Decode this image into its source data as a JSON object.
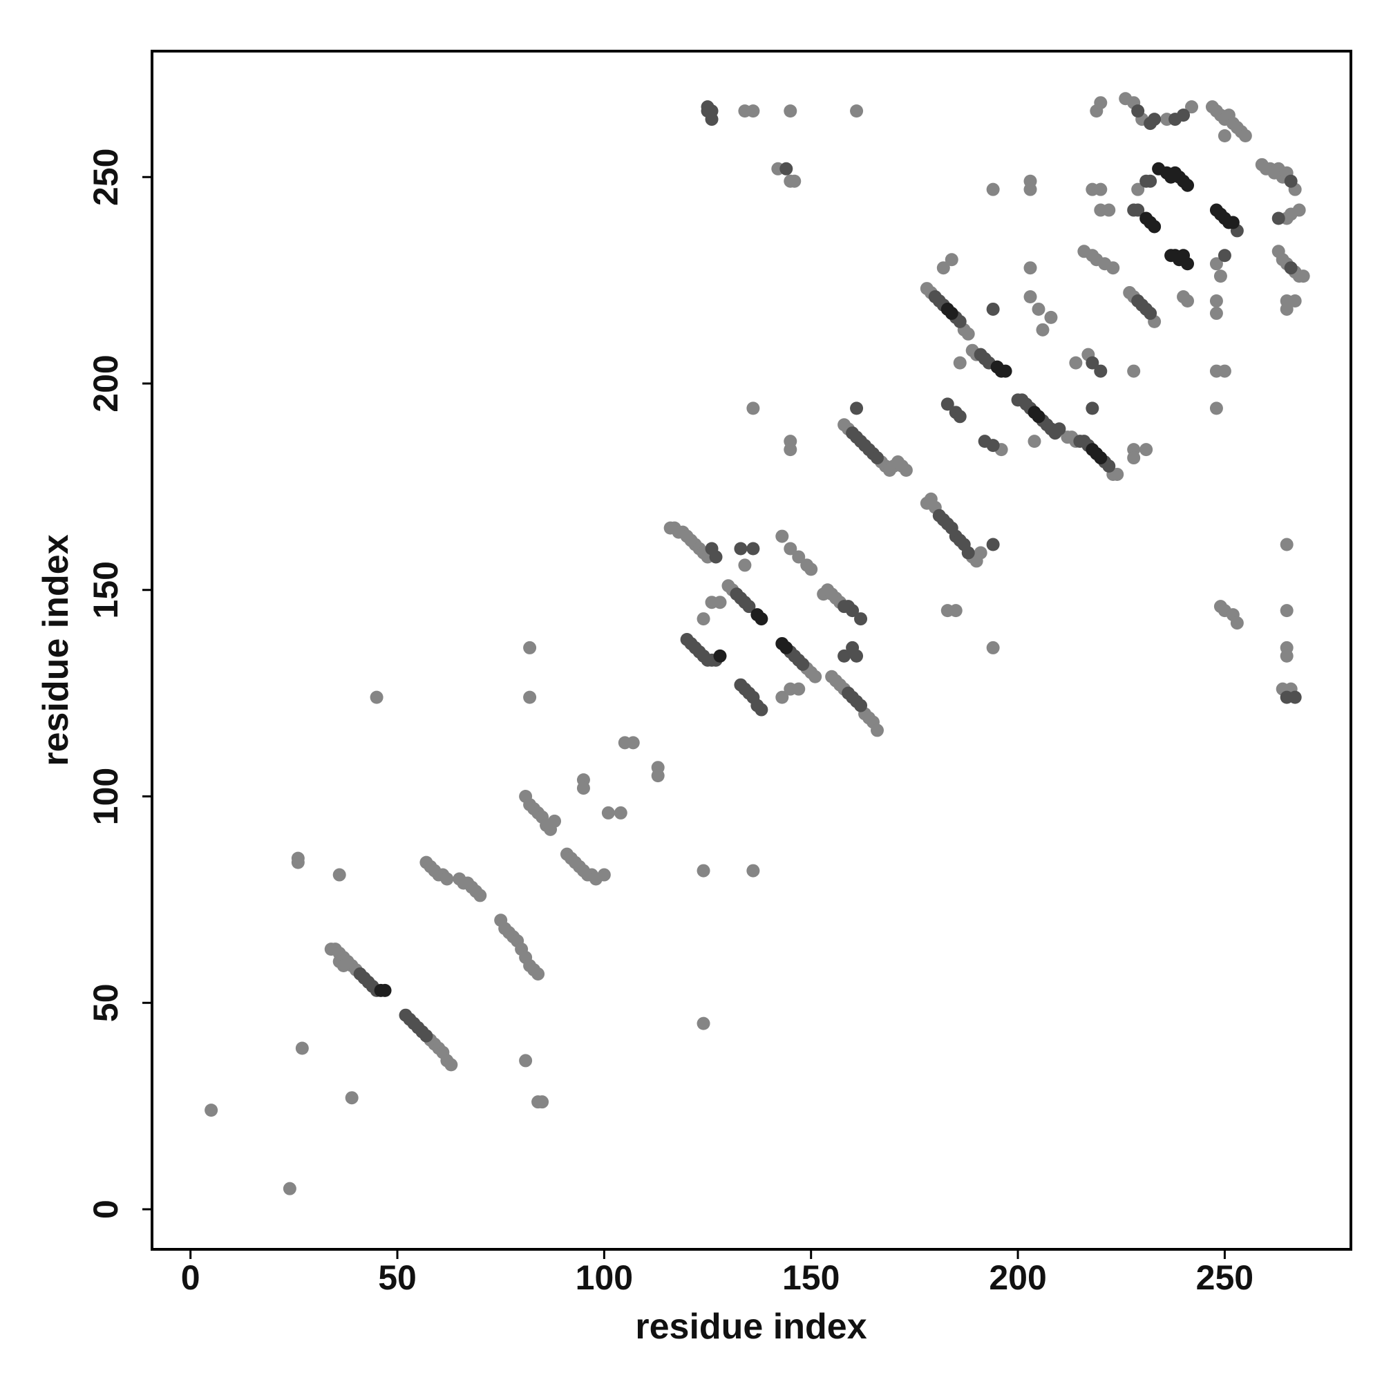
{
  "chart_data": {
    "type": "scatter",
    "xlabel": "residue index",
    "ylabel": "residue index",
    "xlim": [
      -9.3,
      280.5
    ],
    "ylim": [
      -9.7,
      280.5
    ],
    "xticks": [
      0,
      50,
      100,
      150,
      200,
      250
    ],
    "yticks": [
      0,
      50,
      100,
      150,
      200,
      250
    ],
    "series": [
      {
        "color": "#858585",
        "x": [
          5,
          24,
          27,
          39,
          36,
          26,
          26,
          45,
          34,
          35,
          36,
          37,
          38,
          39,
          40,
          36,
          37,
          58,
          59,
          60,
          61,
          62,
          63,
          57,
          58,
          59,
          60,
          61,
          62,
          65,
          66,
          67,
          68,
          69,
          70,
          75,
          76,
          77,
          78,
          79,
          80,
          81,
          82,
          83,
          84,
          81,
          84,
          85,
          82,
          82,
          81,
          82,
          83,
          84,
          85,
          86,
          87,
          88,
          91,
          92,
          93,
          94,
          95,
          96,
          97,
          98,
          100,
          95,
          95,
          101,
          104,
          105,
          107,
          113,
          113,
          124,
          124,
          136,
          136,
          116,
          117,
          118,
          119,
          120,
          121,
          122,
          123,
          124,
          125,
          134,
          124,
          126,
          128,
          130,
          131,
          143,
          145,
          147,
          143,
          145,
          147,
          149,
          150,
          145,
          145,
          145,
          134,
          136,
          161,
          142,
          145,
          146,
          149,
          150,
          151,
          153,
          154,
          155,
          156,
          157,
          155,
          156,
          157,
          158,
          163,
          164,
          165,
          166,
          158,
          159,
          167,
          168,
          169,
          170,
          171,
          172,
          173,
          178,
          179,
          180,
          189,
          190,
          191,
          183,
          185,
          194,
          178,
          179,
          187,
          188,
          182,
          184,
          186,
          189,
          190,
          194,
          196,
          203,
          203,
          205,
          208,
          206,
          203,
          203,
          204,
          212,
          213,
          214,
          223,
          224,
          214,
          217,
          216,
          218,
          219,
          221,
          223,
          218,
          220,
          219,
          220,
          220,
          222,
          227,
          228,
          233,
          228,
          228,
          231,
          228,
          229,
          226,
          228,
          230,
          236,
          242,
          240,
          241,
          248,
          249,
          248,
          248,
          248,
          250,
          248,
          249,
          250,
          252,
          253,
          247,
          248,
          249,
          250,
          251,
          252,
          253,
          254,
          255,
          250,
          259,
          260,
          261,
          262,
          263,
          264,
          265,
          267,
          268,
          265,
          266,
          263,
          264,
          265,
          267,
          268,
          269,
          265,
          267,
          265,
          265,
          265,
          265,
          265,
          264,
          266
        ],
        "y": [
          24,
          5,
          39,
          27,
          81,
          84,
          85,
          124,
          63,
          63,
          62,
          61,
          60,
          59,
          58,
          60,
          59,
          41,
          40,
          39,
          38,
          36,
          35,
          84,
          83,
          82,
          81,
          81,
          80,
          80,
          79,
          79,
          78,
          77,
          76,
          70,
          68,
          67,
          66,
          65,
          63,
          61,
          59,
          58,
          57,
          36,
          26,
          26,
          136,
          124,
          100,
          98,
          97,
          96,
          95,
          93,
          92,
          94,
          86,
          85,
          84,
          83,
          82,
          81,
          81,
          80,
          81,
          104,
          102,
          96,
          96,
          113,
          113,
          107,
          105,
          82,
          45,
          82,
          194,
          165,
          165,
          164,
          164,
          163,
          162,
          161,
          160,
          159,
          158,
          156,
          143,
          147,
          147,
          151,
          150,
          124,
          126,
          126,
          163,
          160,
          158,
          156,
          155,
          186,
          184,
          266,
          266,
          266,
          266,
          252,
          249,
          249,
          131,
          130,
          129,
          149,
          150,
          149,
          148,
          147,
          129,
          128,
          127,
          126,
          120,
          119,
          118,
          116,
          190,
          189,
          181,
          180,
          179,
          180,
          181,
          180,
          179,
          171,
          172,
          170,
          158,
          157,
          159,
          145,
          145,
          136,
          223,
          222,
          213,
          212,
          228,
          230,
          205,
          208,
          207,
          247,
          184,
          228,
          221,
          218,
          216,
          213,
          249,
          247,
          186,
          187,
          187,
          186,
          178,
          178,
          205,
          207,
          232,
          231,
          230,
          229,
          228,
          247,
          247,
          266,
          268,
          242,
          242,
          222,
          221,
          215,
          203,
          184,
          184,
          182,
          247,
          269,
          268,
          264,
          264,
          267,
          221,
          220,
          229,
          226,
          220,
          217,
          203,
          203,
          194,
          146,
          145,
          144,
          142,
          267,
          266,
          265,
          264,
          265,
          263,
          262,
          261,
          260,
          260,
          253,
          252,
          252,
          251,
          252,
          250,
          251,
          247,
          242,
          240,
          241,
          232,
          230,
          229,
          227,
          226,
          226,
          220,
          220,
          218,
          161,
          145,
          136,
          134,
          126,
          126
        ]
      },
      {
        "color": "#505050",
        "x": [
          41,
          42,
          43,
          44,
          45,
          52,
          53,
          54,
          55,
          56,
          57,
          126,
          127,
          133,
          136,
          120,
          121,
          122,
          123,
          124,
          125,
          126,
          127,
          132,
          133,
          134,
          135,
          133,
          134,
          135,
          136,
          137,
          138,
          145,
          146,
          147,
          148,
          158,
          159,
          160,
          162,
          160,
          161,
          158,
          159,
          160,
          161,
          162,
          125,
          126,
          125,
          126,
          144,
          160,
          161,
          162,
          163,
          164,
          165,
          166,
          161,
          181,
          182,
          183,
          184,
          185,
          186,
          187,
          188,
          194,
          180,
          181,
          182,
          185,
          186,
          194,
          183,
          185,
          186,
          191,
          192,
          193,
          192,
          194,
          200,
          201,
          202,
          203,
          206,
          207,
          208,
          209,
          210,
          215,
          216,
          217,
          221,
          222,
          218,
          218,
          220,
          229,
          230,
          231,
          232,
          231,
          232,
          228,
          229,
          229,
          232,
          233,
          238,
          240,
          250,
          266,
          265,
          267,
          263,
          266,
          253
        ],
        "y": [
          57,
          56,
          55,
          54,
          53,
          47,
          46,
          45,
          44,
          43,
          42,
          160,
          158,
          160,
          160,
          138,
          137,
          136,
          135,
          134,
          133,
          133,
          133,
          149,
          148,
          147,
          146,
          127,
          126,
          125,
          124,
          122,
          121,
          135,
          134,
          133,
          132,
          146,
          146,
          145,
          143,
          136,
          134,
          134,
          125,
          124,
          123,
          122,
          266,
          266,
          267,
          264,
          252,
          188,
          187,
          186,
          185,
          184,
          183,
          182,
          194,
          168,
          167,
          166,
          165,
          163,
          162,
          161,
          159,
          161,
          221,
          220,
          219,
          216,
          215,
          218,
          195,
          193,
          192,
          207,
          206,
          205,
          186,
          185,
          196,
          196,
          195,
          194,
          191,
          190,
          189,
          188,
          189,
          186,
          186,
          185,
          181,
          180,
          194,
          205,
          203,
          220,
          219,
          218,
          217,
          249,
          249,
          242,
          242,
          266,
          263,
          264,
          264,
          265,
          231,
          228,
          124,
          124,
          240,
          249,
          237
        ]
      },
      {
        "color": "#1e1e1e",
        "x": [
          46,
          47,
          137,
          138,
          143,
          144,
          128,
          183,
          184,
          195,
          196,
          197,
          204,
          205,
          218,
          219,
          220,
          231,
          232,
          233,
          234,
          236,
          237,
          238,
          239,
          240,
          241,
          237,
          238,
          239,
          240,
          241,
          248,
          249,
          250,
          251,
          252
        ],
        "y": [
          53,
          53,
          144,
          143,
          137,
          136,
          134,
          218,
          217,
          204,
          203,
          203,
          193,
          192,
          184,
          183,
          182,
          240,
          239,
          238,
          252,
          251,
          250,
          251,
          250,
          249,
          248,
          231,
          231,
          230,
          231,
          229,
          242,
          241,
          240,
          239,
          239
        ]
      }
    ]
  }
}
